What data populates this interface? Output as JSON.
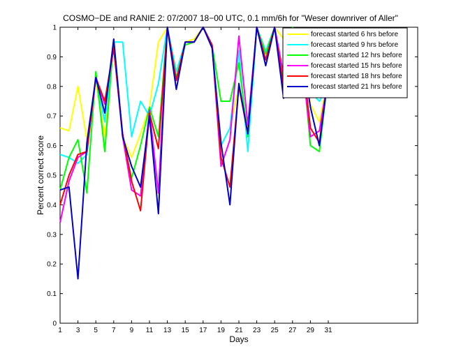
{
  "chart_data": {
    "type": "line",
    "title": "COSMO−DE and RANIE 2: 07/2007 18−00 UTC, 0.1 mm/6h for \"Weser downriver of Aller\"",
    "xlabel": "Days",
    "ylabel": "Percent correct score",
    "xlim": [
      1,
      41
    ],
    "ylim": [
      0,
      1
    ],
    "xticks": [
      1,
      3,
      5,
      7,
      9,
      11,
      13,
      15,
      17,
      19,
      21,
      23,
      25,
      27,
      29,
      31
    ],
    "yticks": [
      0,
      0.1,
      0.2,
      0.3,
      0.4,
      0.5,
      0.6,
      0.7,
      0.8,
      0.9,
      1
    ],
    "ytick_labels": [
      "0",
      "0.1",
      "0.2",
      "0.3",
      "0.4",
      "0.5",
      "0.6",
      "0.7",
      "0.8",
      "0.9",
      "1"
    ],
    "grid": false,
    "legend_position": "top-right",
    "x": [
      1,
      2,
      3,
      4,
      5,
      6,
      7,
      8,
      9,
      10,
      11,
      12,
      13,
      14,
      15,
      16,
      17,
      18,
      19,
      20,
      21,
      22,
      23,
      24,
      25,
      26,
      27,
      28,
      29,
      30,
      31
    ],
    "series": [
      {
        "name": "forecast started 6 hrs before",
        "color": "#ffff00",
        "values": [
          0.66,
          0.65,
          0.8,
          0.62,
          0.82,
          0.63,
          0.94,
          0.63,
          0.56,
          0.64,
          0.73,
          0.95,
          1.0,
          0.85,
          0.95,
          0.96,
          1.0,
          0.93,
          0.6,
          0.66,
          0.8,
          0.66,
          1.0,
          0.92,
          1.0,
          0.96,
          0.81,
          0.93,
          0.74,
          0.68,
          0.83
        ]
      },
      {
        "name": "forecast started 9 hrs before",
        "color": "#00ffff",
        "values": [
          0.57,
          0.56,
          0.54,
          0.57,
          0.83,
          0.68,
          0.95,
          0.95,
          0.63,
          0.75,
          0.7,
          0.81,
          1.0,
          0.85,
          0.95,
          0.95,
          1.0,
          0.94,
          0.6,
          0.66,
          0.92,
          0.58,
          1.0,
          0.92,
          1.0,
          0.83,
          0.94,
          0.9,
          0.78,
          0.75,
          0.8
        ]
      },
      {
        "name": "forecast started 12 hrs before",
        "color": "#00ff00",
        "values": [
          0.45,
          0.56,
          0.62,
          0.44,
          0.85,
          0.58,
          0.96,
          0.63,
          0.49,
          0.6,
          0.73,
          0.63,
          1.0,
          0.83,
          0.94,
          0.95,
          1.0,
          0.94,
          0.75,
          0.75,
          0.88,
          0.63,
          1.0,
          0.91,
          1.0,
          0.82,
          1.0,
          0.93,
          0.6,
          0.58,
          0.84
        ]
      },
      {
        "name": "forecast started 15 hrs before",
        "color": "#ff00ff",
        "values": [
          0.34,
          0.48,
          0.56,
          0.58,
          0.83,
          0.74,
          0.93,
          0.63,
          0.45,
          0.43,
          0.72,
          0.44,
          1.0,
          0.82,
          0.95,
          0.95,
          1.0,
          0.94,
          0.53,
          0.62,
          0.97,
          0.67,
          1.0,
          0.89,
          1.0,
          0.84,
          0.97,
          0.9,
          0.63,
          0.65,
          0.83
        ]
      },
      {
        "name": "forecast started 18 hrs before",
        "color": "#ff0000",
        "values": [
          0.4,
          0.5,
          0.57,
          0.58,
          0.83,
          0.75,
          0.93,
          0.64,
          0.48,
          0.38,
          0.71,
          0.59,
          1.0,
          0.82,
          0.95,
          0.95,
          1.0,
          0.94,
          0.56,
          0.46,
          0.8,
          0.64,
          1.0,
          0.89,
          1.0,
          0.8,
          0.98,
          0.93,
          0.66,
          0.61,
          0.84
        ]
      },
      {
        "name": "forecast started 21 hrs before",
        "color": "#0000cc",
        "values": [
          0.45,
          0.46,
          0.15,
          0.61,
          0.83,
          0.71,
          0.96,
          0.63,
          0.53,
          0.46,
          0.7,
          0.37,
          1.0,
          0.79,
          0.95,
          0.95,
          1.0,
          0.93,
          0.61,
          0.4,
          0.81,
          0.64,
          1.0,
          0.87,
          1.0,
          0.76,
          0.97,
          0.93,
          0.73,
          0.6,
          0.84
        ]
      }
    ]
  }
}
